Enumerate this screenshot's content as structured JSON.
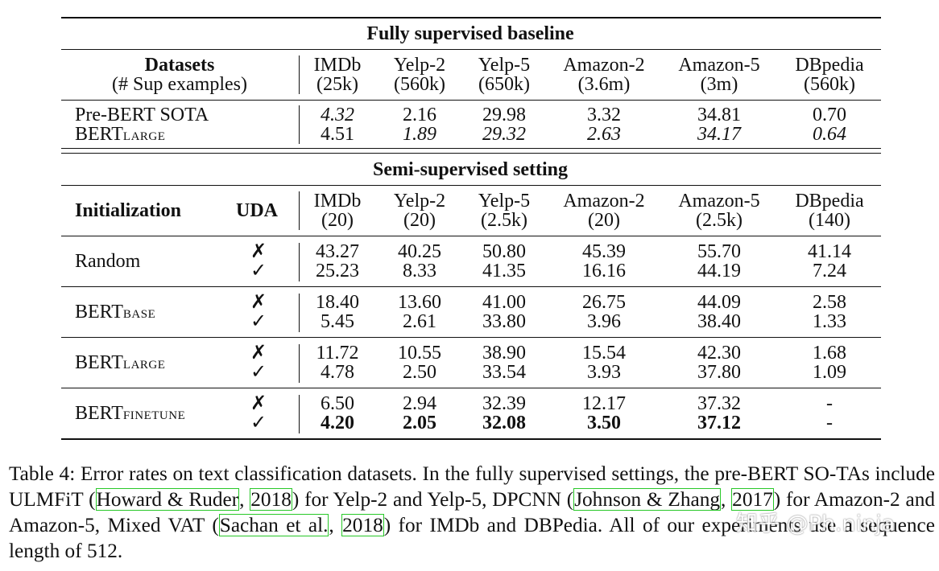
{
  "top": {
    "title": "Fully supervised baseline",
    "header": {
      "left1": "Datasets",
      "left2": "(# Sup examples)",
      "datasets": [
        {
          "name": "IMDb",
          "size": "(25k)"
        },
        {
          "name": "Yelp-2",
          "size": "(560k)"
        },
        {
          "name": "Yelp-5",
          "size": "(650k)"
        },
        {
          "name": "Amazon-2",
          "size": "(3.6m)"
        },
        {
          "name": "Amazon-5",
          "size": "(3m)"
        },
        {
          "name": "DBpedia",
          "size": "(560k)"
        }
      ]
    },
    "rows": [
      {
        "label": "Pre-BERT SOTA",
        "values": [
          "4.32",
          "2.16",
          "29.98",
          "3.32",
          "34.81",
          "0.70"
        ]
      },
      {
        "label": "BERT",
        "sub": "LARGE",
        "values": [
          "4.51",
          "1.89",
          "29.32",
          "2.63",
          "34.17",
          "0.64"
        ]
      }
    ]
  },
  "bottom": {
    "title": "Semi-supervised setting",
    "header": {
      "init": "Initialization",
      "uda": "UDA",
      "datasets": [
        {
          "name": "IMDb",
          "size": "(20)"
        },
        {
          "name": "Yelp-2",
          "size": "(20)"
        },
        {
          "name": "Yelp-5",
          "size": "(2.5k)"
        },
        {
          "name": "Amazon-2",
          "size": "(20)"
        },
        {
          "name": "Amazon-5",
          "size": "(2.5k)"
        },
        {
          "name": "DBpedia",
          "size": "(140)"
        }
      ]
    },
    "marks": {
      "no": "✗",
      "yes": "✓"
    },
    "groups": [
      {
        "label": "Random",
        "sub": "",
        "no_uda": [
          "43.27",
          "40.25",
          "50.80",
          "45.39",
          "55.70",
          "41.14"
        ],
        "uda": [
          "25.23",
          "8.33",
          "41.35",
          "16.16",
          "44.19",
          "7.24"
        ]
      },
      {
        "label": "BERT",
        "sub": "BASE",
        "no_uda": [
          "18.40",
          "13.60",
          "41.00",
          "26.75",
          "44.09",
          "2.58"
        ],
        "uda": [
          "5.45",
          "2.61",
          "33.80",
          "3.96",
          "38.40",
          "1.33"
        ]
      },
      {
        "label": "BERT",
        "sub": "LARGE",
        "no_uda": [
          "11.72",
          "10.55",
          "38.90",
          "15.54",
          "42.30",
          "1.68"
        ],
        "uda": [
          "4.78",
          "2.50",
          "33.54",
          "3.93",
          "37.80",
          "1.09"
        ]
      },
      {
        "label": "BERT",
        "sub": "FINETUNE",
        "no_uda": [
          "6.50",
          "2.94",
          "32.39",
          "12.17",
          "37.32",
          "-"
        ],
        "uda": [
          "4.20",
          "2.05",
          "32.08",
          "3.50",
          "37.12",
          "-"
        ]
      }
    ]
  },
  "caption": {
    "p1": "Table 4: Error rates on text classification datasets. In the fully supervised settings, the pre-BERT SO-TAs include ULMFiT (",
    "c1": "Howard & Ruder",
    "s1": ", ",
    "c2": "2018",
    "p2": ") for Yelp-2 and Yelp-5, DPCNN (",
    "c3": "Johnson & Zhang",
    "s2": ", ",
    "c4": "2017",
    "p3": ") for Amazon-2 and Amazon-5, Mixed VAT (",
    "c5": "Sachan et al.",
    "s3": ", ",
    "c6": "2018",
    "p4": ") for IMDb and DBPedia. All of our experiments use a sequence length of 512."
  },
  "watermark": "知乎 @Ph.ninja"
}
